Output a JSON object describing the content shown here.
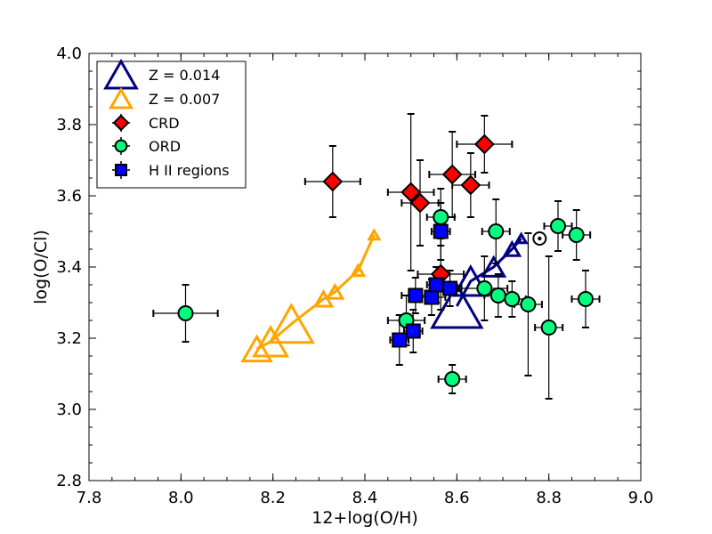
{
  "chart_data": {
    "type": "scatter",
    "title": "",
    "xlabel": "12+log(O/H)",
    "ylabel": "log(O/Cl)",
    "xlim": [
      7.8,
      9.0
    ],
    "ylim": [
      2.8,
      4.0
    ],
    "xticks": [
      "7.8",
      "8.0",
      "8.2",
      "8.4",
      "8.6",
      "8.8",
      "9.0"
    ],
    "yticks": [
      "2.8",
      "3.0",
      "3.2",
      "3.4",
      "3.6",
      "3.8",
      "4.0"
    ],
    "legend_position": "top-left",
    "legend": [
      {
        "label": "Z = 0.014",
        "marker": "triangle",
        "color": "#000080"
      },
      {
        "label": "Z = 0.007",
        "marker": "triangle",
        "color": "#FFA500"
      },
      {
        "label": "CRD",
        "marker": "diamond",
        "color": "#FF0000"
      },
      {
        "label": "ORD",
        "marker": "circle",
        "color": "#00FF7F"
      },
      {
        "label": "H II regions",
        "marker": "square",
        "color": "#0000FF"
      }
    ],
    "series": [
      {
        "name": "CRD",
        "marker": "diamond",
        "color": "#FF0000",
        "points": [
          {
            "x": 8.33,
            "y": 3.64,
            "xerr": 0.06,
            "yerr": 0.1
          },
          {
            "x": 8.5,
            "y": 3.61,
            "xerr": 0.05,
            "yerr": 0.22
          },
          {
            "x": 8.52,
            "y": 3.58,
            "xerr": 0.04,
            "yerr": 0.12
          },
          {
            "x": 8.59,
            "y": 3.66,
            "xerr": 0.05,
            "yerr": 0.12
          },
          {
            "x": 8.63,
            "y": 3.63,
            "xerr": 0.04,
            "yerr": 0.09
          },
          {
            "x": 8.66,
            "y": 3.745,
            "xerr": 0.06,
            "yerr": 0.08
          },
          {
            "x": 8.565,
            "y": 3.38,
            "xerr": 0.05,
            "yerr": 0.1
          }
        ]
      },
      {
        "name": "ORD",
        "marker": "circle",
        "color": "#00FF7F",
        "points": [
          {
            "x": 8.01,
            "y": 3.27,
            "xerr": 0.07,
            "yerr": 0.08
          },
          {
            "x": 8.49,
            "y": 3.25,
            "xerr": 0.04,
            "yerr": 0.07
          },
          {
            "x": 8.565,
            "y": 3.54,
            "xerr": 0.03,
            "yerr": 0.08
          },
          {
            "x": 8.59,
            "y": 3.085,
            "xerr": 0.03,
            "yerr": 0.04
          },
          {
            "x": 8.66,
            "y": 3.34,
            "xerr": 0.05,
            "yerr": 0.09
          },
          {
            "x": 8.685,
            "y": 3.5,
            "xerr": 0.03,
            "yerr": 0.09
          },
          {
            "x": 8.69,
            "y": 3.32,
            "xerr": 0.03,
            "yerr": 0.06
          },
          {
            "x": 8.72,
            "y": 3.31,
            "xerr": 0.03,
            "yerr": 0.05
          },
          {
            "x": 8.755,
            "y": 3.295,
            "xerr": 0.03,
            "yerr": 0.2
          },
          {
            "x": 8.8,
            "y": 3.23,
            "xerr": 0.03,
            "yerr": 0.2
          },
          {
            "x": 8.82,
            "y": 3.515,
            "xerr": 0.03,
            "yerr": 0.07
          },
          {
            "x": 8.86,
            "y": 3.49,
            "xerr": 0.03,
            "yerr": 0.07
          },
          {
            "x": 8.88,
            "y": 3.31,
            "xerr": 0.03,
            "yerr": 0.08
          }
        ]
      },
      {
        "name": "H II regions",
        "marker": "square",
        "color": "#0000FF",
        "points": [
          {
            "x": 8.475,
            "y": 3.195,
            "xerr": 0.02,
            "yerr": 0.07
          },
          {
            "x": 8.505,
            "y": 3.22,
            "xerr": 0.02,
            "yerr": 0.06
          },
          {
            "x": 8.51,
            "y": 3.32,
            "xerr": 0.03,
            "yerr": 0.05
          },
          {
            "x": 8.545,
            "y": 3.315,
            "xerr": 0.03,
            "yerr": 0.05
          },
          {
            "x": 8.555,
            "y": 3.35,
            "xerr": 0.02,
            "yerr": 0.05
          },
          {
            "x": 8.565,
            "y": 3.5,
            "xerr": 0.02,
            "yerr": 0.08
          },
          {
            "x": 8.585,
            "y": 3.34,
            "xerr": 0.02,
            "yerr": 0.05
          }
        ]
      }
    ],
    "model_tracks": [
      {
        "name": "Z = 0.014",
        "color": "#000080",
        "points": [
          {
            "x": 8.6,
            "y": 3.29,
            "size": 3
          },
          {
            "x": 8.63,
            "y": 3.36,
            "size": 2
          },
          {
            "x": 8.68,
            "y": 3.4,
            "size": 1.3
          },
          {
            "x": 8.72,
            "y": 3.45,
            "size": 0.9
          },
          {
            "x": 8.74,
            "y": 3.48,
            "size": 0.6
          }
        ]
      },
      {
        "name": "Z = 0.007",
        "color": "#FFA500",
        "points": [
          {
            "x": 8.165,
            "y": 3.17,
            "size": 1.7
          },
          {
            "x": 8.195,
            "y": 3.19,
            "size": 2.0
          },
          {
            "x": 8.24,
            "y": 3.24,
            "size": 2.6
          },
          {
            "x": 8.31,
            "y": 3.31,
            "size": 1.0
          },
          {
            "x": 8.335,
            "y": 3.33,
            "size": 0.9
          },
          {
            "x": 8.385,
            "y": 3.39,
            "size": 0.7
          },
          {
            "x": 8.42,
            "y": 3.49,
            "size": 0.6
          }
        ]
      }
    ],
    "sun": {
      "x": 8.78,
      "y": 3.48
    }
  }
}
